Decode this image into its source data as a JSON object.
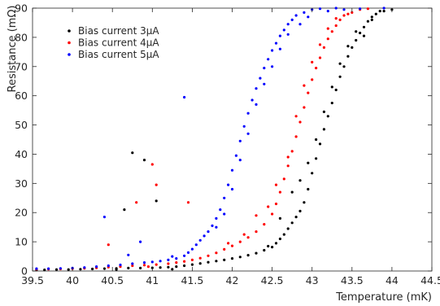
{
  "chart_data": {
    "type": "scatter",
    "title": "",
    "xlabel": "Temperature (mK)",
    "ylabel": "Resistance (mΩ)",
    "xlim": [
      39.5,
      44.5
    ],
    "ylim": [
      0,
      90
    ],
    "xticks": [
      "39.5",
      "40",
      "40.5",
      "41",
      "41.5",
      "42",
      "42.5",
      "43",
      "43.5",
      "44",
      "44.5"
    ],
    "yticks": [
      "0",
      "10",
      "20",
      "30",
      "40",
      "50",
      "60",
      "70",
      "80",
      "90"
    ],
    "grid": false,
    "legend_position": "top-left",
    "series": [
      {
        "name": "Bias current 3μA",
        "color": "#000000",
        "points": [
          [
            39.55,
            0.4
          ],
          [
            39.65,
            0.4
          ],
          [
            39.8,
            0.5
          ],
          [
            39.95,
            0.5
          ],
          [
            40.1,
            0.6
          ],
          [
            40.25,
            0.7
          ],
          [
            40.4,
            0.8
          ],
          [
            40.55,
            0.9
          ],
          [
            40.7,
            1.0
          ],
          [
            40.85,
            1.0
          ],
          [
            41.0,
            1.1
          ],
          [
            41.1,
            1.2
          ],
          [
            41.2,
            1.3
          ],
          [
            41.3,
            1.5
          ],
          [
            41.4,
            1.8
          ],
          [
            41.5,
            2.2
          ],
          [
            41.6,
            2.6
          ],
          [
            41.7,
            3.0
          ],
          [
            41.8,
            3.4
          ],
          [
            41.9,
            3.8
          ],
          [
            42.0,
            4.3
          ],
          [
            42.1,
            4.8
          ],
          [
            42.2,
            5.4
          ],
          [
            42.3,
            6.1
          ],
          [
            42.4,
            7.1
          ],
          [
            42.5,
            8.2
          ],
          [
            42.55,
            9.5
          ],
          [
            42.6,
            11.0
          ],
          [
            42.65,
            12.5
          ],
          [
            42.7,
            14.5
          ],
          [
            42.75,
            16.5
          ],
          [
            42.8,
            18.5
          ],
          [
            42.85,
            20.5
          ],
          [
            42.9,
            23.5
          ],
          [
            42.95,
            28.0
          ],
          [
            43.0,
            33.5
          ],
          [
            43.05,
            38.5
          ],
          [
            43.1,
            43.5
          ],
          [
            43.15,
            48.5
          ],
          [
            43.2,
            53.0
          ],
          [
            43.25,
            57.5
          ],
          [
            43.3,
            62.0
          ],
          [
            43.35,
            66.5
          ],
          [
            43.4,
            70.0
          ],
          [
            43.45,
            73.5
          ],
          [
            43.5,
            76.5
          ],
          [
            43.55,
            79.0
          ],
          [
            43.6,
            81.5
          ],
          [
            43.65,
            83.5
          ],
          [
            43.7,
            85.5
          ],
          [
            43.75,
            87.0
          ],
          [
            43.8,
            88.0
          ],
          [
            43.9,
            89.0
          ],
          [
            44.0,
            89.5
          ],
          [
            40.65,
            21.0
          ],
          [
            40.75,
            40.5
          ],
          [
            40.9,
            38.0
          ],
          [
            41.05,
            24.0
          ],
          [
            40.55,
            0.5
          ],
          [
            41.25,
            0.6
          ],
          [
            42.45,
            8.5
          ],
          [
            42.6,
            18.0
          ],
          [
            42.75,
            27.0
          ],
          [
            42.85,
            31.0
          ],
          [
            42.95,
            37.0
          ],
          [
            43.05,
            45.0
          ],
          [
            43.15,
            54.5
          ],
          [
            43.25,
            63.0
          ],
          [
            43.35,
            71.0
          ],
          [
            43.45,
            77.0
          ],
          [
            43.55,
            82.0
          ],
          [
            43.65,
            80.5
          ],
          [
            43.75,
            86.0
          ],
          [
            43.85,
            89.0
          ]
        ]
      },
      {
        "name": "Bias current 4μA",
        "color": "#ff0000",
        "points": [
          [
            39.55,
            0.6
          ],
          [
            39.7,
            0.6
          ],
          [
            39.85,
            0.7
          ],
          [
            40.0,
            0.8
          ],
          [
            40.15,
            0.9
          ],
          [
            40.3,
            1.1
          ],
          [
            40.45,
            1.3
          ],
          [
            40.6,
            1.5
          ],
          [
            40.75,
            1.8
          ],
          [
            40.9,
            2.0
          ],
          [
            41.05,
            2.2
          ],
          [
            41.2,
            2.5
          ],
          [
            41.3,
            2.9
          ],
          [
            41.4,
            3.3
          ],
          [
            41.5,
            3.8
          ],
          [
            41.6,
            4.4
          ],
          [
            41.7,
            5.2
          ],
          [
            41.8,
            6.2
          ],
          [
            41.9,
            7.4
          ],
          [
            42.0,
            8.6
          ],
          [
            42.1,
            10.0
          ],
          [
            42.2,
            11.5
          ],
          [
            42.3,
            13.5
          ],
          [
            42.4,
            16.0
          ],
          [
            42.5,
            19.5
          ],
          [
            42.55,
            23.0
          ],
          [
            42.6,
            27.0
          ],
          [
            42.65,
            31.5
          ],
          [
            42.7,
            36.0
          ],
          [
            42.75,
            41.0
          ],
          [
            42.8,
            46.0
          ],
          [
            42.85,
            51.0
          ],
          [
            42.9,
            56.0
          ],
          [
            42.95,
            61.0
          ],
          [
            43.0,
            65.5
          ],
          [
            43.05,
            69.5
          ],
          [
            43.1,
            73.0
          ],
          [
            43.15,
            76.5
          ],
          [
            43.2,
            79.5
          ],
          [
            43.25,
            82.0
          ],
          [
            43.3,
            84.0
          ],
          [
            43.35,
            86.0
          ],
          [
            43.4,
            87.5
          ],
          [
            43.5,
            88.5
          ],
          [
            43.6,
            89.5
          ],
          [
            43.7,
            89.8
          ],
          [
            40.8,
            23.5
          ],
          [
            41.05,
            29.5
          ],
          [
            41.0,
            36.5
          ],
          [
            41.45,
            23.5
          ],
          [
            40.45,
            9.0
          ],
          [
            40.95,
            1.5
          ],
          [
            42.3,
            19.0
          ],
          [
            42.45,
            22.0
          ],
          [
            42.55,
            29.5
          ],
          [
            42.7,
            39.0
          ],
          [
            42.8,
            53.0
          ],
          [
            42.9,
            63.5
          ],
          [
            43.0,
            71.5
          ],
          [
            43.1,
            77.5
          ],
          [
            43.2,
            83.0
          ],
          [
            43.3,
            86.5
          ],
          [
            43.45,
            88.0
          ],
          [
            42.15,
            12.5
          ],
          [
            41.95,
            9.5
          ]
        ]
      },
      {
        "name": "Bias current 5μA",
        "color": "#0000ff",
        "points": [
          [
            39.55,
            0.8
          ],
          [
            39.7,
            0.8
          ],
          [
            39.85,
            0.9
          ],
          [
            40.0,
            1.0
          ],
          [
            40.15,
            1.2
          ],
          [
            40.3,
            1.5
          ],
          [
            40.45,
            1.8
          ],
          [
            40.6,
            2.1
          ],
          [
            40.75,
            2.5
          ],
          [
            40.9,
            2.9
          ],
          [
            41.0,
            3.1
          ],
          [
            41.1,
            3.4
          ],
          [
            41.2,
            3.8
          ],
          [
            41.3,
            4.3
          ],
          [
            41.4,
            5.2
          ],
          [
            41.45,
            6.3
          ],
          [
            41.5,
            7.5
          ],
          [
            41.55,
            9.0
          ],
          [
            41.6,
            10.5
          ],
          [
            41.65,
            12.0
          ],
          [
            41.7,
            13.5
          ],
          [
            41.75,
            15.5
          ],
          [
            41.8,
            18.0
          ],
          [
            41.85,
            21.0
          ],
          [
            41.9,
            25.0
          ],
          [
            41.95,
            29.5
          ],
          [
            42.0,
            34.5
          ],
          [
            42.05,
            39.5
          ],
          [
            42.1,
            44.5
          ],
          [
            42.15,
            49.5
          ],
          [
            42.2,
            54.0
          ],
          [
            42.25,
            58.5
          ],
          [
            42.3,
            62.5
          ],
          [
            42.35,
            66.0
          ],
          [
            42.4,
            69.5
          ],
          [
            42.45,
            72.5
          ],
          [
            42.5,
            75.5
          ],
          [
            42.55,
            78.0
          ],
          [
            42.6,
            80.5
          ],
          [
            42.65,
            82.5
          ],
          [
            42.7,
            84.5
          ],
          [
            42.75,
            86.0
          ],
          [
            42.8,
            87.5
          ],
          [
            42.9,
            88.5
          ],
          [
            43.0,
            89.5
          ],
          [
            43.1,
            89.8
          ],
          [
            43.3,
            90.0
          ],
          [
            40.4,
            18.5
          ],
          [
            41.4,
            59.5
          ],
          [
            40.85,
            10.0
          ],
          [
            40.7,
            5.5
          ],
          [
            41.25,
            5.0
          ],
          [
            41.8,
            15.0
          ],
          [
            41.9,
            19.5
          ],
          [
            42.0,
            28.0
          ],
          [
            42.1,
            38.0
          ],
          [
            42.2,
            47.0
          ],
          [
            42.3,
            57.0
          ],
          [
            42.4,
            64.0
          ],
          [
            42.5,
            70.0
          ],
          [
            42.6,
            76.0
          ],
          [
            42.7,
            81.0
          ],
          [
            42.85,
            84.5
          ],
          [
            42.95,
            87.0
          ],
          [
            43.2,
            89.0
          ],
          [
            43.4,
            89.5
          ],
          [
            43.6,
            89.8
          ],
          [
            43.9,
            90.0
          ]
        ]
      }
    ]
  }
}
